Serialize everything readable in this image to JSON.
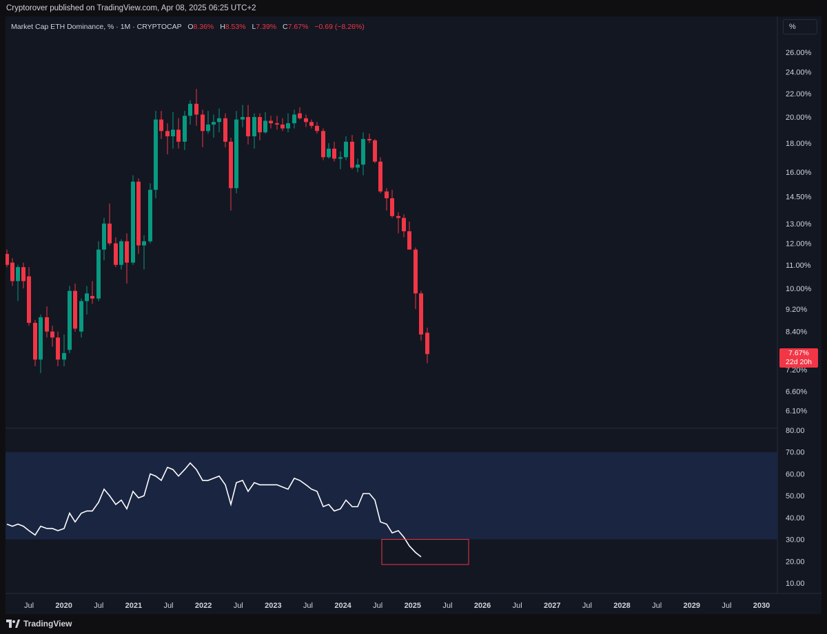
{
  "header": {
    "publisher_text": "Cryptorover published on TradingView.com, Apr 08, 2025 06:25 UTC+2"
  },
  "legend": {
    "symbol": "Market Cap ETH Dominance, % · 1M · CRYPTOCAP",
    "open_label": "O",
    "open": "8.36%",
    "high_label": "H",
    "high": "8.53%",
    "low_label": "L",
    "low": "7.39%",
    "close_label": "C",
    "close": "7.67%",
    "change": "−0.69 (−8.26%)"
  },
  "scale_button": "%",
  "price_badge": {
    "value": "7.67%",
    "countdown": "22d 20h"
  },
  "footer": {
    "brand": "TradingView"
  },
  "colors": {
    "up": "#089981",
    "down": "#f23645",
    "background": "#131722",
    "rsi_band": "#1a2541",
    "rsi_line": "#ffffff",
    "highlight_box": "#f23645"
  },
  "chart_data": [
    {
      "type": "candlestick",
      "title": "Market Cap ETH Dominance, % · 1M · CRYPTOCAP",
      "scale": "log",
      "y_ticks": [
        "26.00%",
        "24.00%",
        "22.00%",
        "20.00%",
        "18.00%",
        "16.00%",
        "14.50%",
        "13.00%",
        "12.00%",
        "11.00%",
        "10.00%",
        "9.20%",
        "8.40%",
        "7.20%",
        "6.60%",
        "6.10%"
      ],
      "ylim": [
        5.8,
        28
      ],
      "candles": [
        {
          "x": 10,
          "o": 11.5,
          "h": 11.7,
          "l": 10.9,
          "c": 11.0
        },
        {
          "x": 18,
          "o": 11.1,
          "h": 11.3,
          "l": 10.1,
          "c": 10.3
        },
        {
          "x": 26,
          "o": 10.3,
          "h": 11.0,
          "l": 9.5,
          "c": 10.9
        },
        {
          "x": 34,
          "o": 10.9,
          "h": 11.1,
          "l": 10.0,
          "c": 10.3
        },
        {
          "x": 42,
          "o": 10.5,
          "h": 10.9,
          "l": 8.6,
          "c": 8.7
        },
        {
          "x": 51,
          "o": 8.7,
          "h": 8.8,
          "l": 7.3,
          "c": 7.5
        },
        {
          "x": 59,
          "o": 7.5,
          "h": 9.0,
          "l": 7.1,
          "c": 8.9
        },
        {
          "x": 68,
          "o": 8.9,
          "h": 9.3,
          "l": 8.2,
          "c": 8.4
        },
        {
          "x": 76,
          "o": 8.4,
          "h": 8.6,
          "l": 7.9,
          "c": 8.2
        },
        {
          "x": 84,
          "o": 8.2,
          "h": 8.4,
          "l": 7.3,
          "c": 7.5
        },
        {
          "x": 93,
          "o": 7.5,
          "h": 8.3,
          "l": 7.3,
          "c": 7.7
        },
        {
          "x": 101,
          "o": 7.8,
          "h": 10.1,
          "l": 7.7,
          "c": 9.9
        },
        {
          "x": 109,
          "o": 9.9,
          "h": 10.2,
          "l": 8.4,
          "c": 8.5
        },
        {
          "x": 118,
          "o": 8.4,
          "h": 9.6,
          "l": 8.2,
          "c": 9.5
        },
        {
          "x": 126,
          "o": 9.5,
          "h": 10.1,
          "l": 9.0,
          "c": 9.8
        },
        {
          "x": 134,
          "o": 9.7,
          "h": 10.3,
          "l": 9.4,
          "c": 9.6
        },
        {
          "x": 143,
          "o": 9.6,
          "h": 12.1,
          "l": 9.5,
          "c": 11.7
        },
        {
          "x": 151,
          "o": 11.7,
          "h": 13.3,
          "l": 11.2,
          "c": 13.0
        },
        {
          "x": 159,
          "o": 13.0,
          "h": 14.1,
          "l": 11.9,
          "c": 12.0
        },
        {
          "x": 168,
          "o": 12.0,
          "h": 12.3,
          "l": 10.9,
          "c": 11.0
        },
        {
          "x": 176,
          "o": 11.0,
          "h": 12.2,
          "l": 10.8,
          "c": 12.1
        },
        {
          "x": 184,
          "o": 12.1,
          "h": 12.5,
          "l": 10.2,
          "c": 11.1
        },
        {
          "x": 193,
          "o": 11.1,
          "h": 15.8,
          "l": 11.0,
          "c": 15.4
        },
        {
          "x": 201,
          "o": 15.4,
          "h": 15.6,
          "l": 11.5,
          "c": 11.9
        },
        {
          "x": 209,
          "o": 11.9,
          "h": 12.4,
          "l": 10.8,
          "c": 12.1
        },
        {
          "x": 218,
          "o": 12.1,
          "h": 15.3,
          "l": 12.0,
          "c": 14.9
        },
        {
          "x": 226,
          "o": 14.9,
          "h": 20.5,
          "l": 14.4,
          "c": 19.8
        },
        {
          "x": 234,
          "o": 19.8,
          "h": 20.5,
          "l": 18.3,
          "c": 18.9
        },
        {
          "x": 243,
          "o": 18.9,
          "h": 19.5,
          "l": 17.2,
          "c": 18.5
        },
        {
          "x": 251,
          "o": 18.5,
          "h": 20.4,
          "l": 17.6,
          "c": 19.0
        },
        {
          "x": 259,
          "o": 19.0,
          "h": 19.9,
          "l": 17.6,
          "c": 18.1
        },
        {
          "x": 268,
          "o": 18.1,
          "h": 20.5,
          "l": 17.5,
          "c": 20.1
        },
        {
          "x": 276,
          "o": 20.1,
          "h": 21.4,
          "l": 19.4,
          "c": 21.1
        },
        {
          "x": 285,
          "o": 21.1,
          "h": 22.4,
          "l": 19.3,
          "c": 20.2
        },
        {
          "x": 294,
          "o": 20.2,
          "h": 20.6,
          "l": 17.7,
          "c": 18.9
        },
        {
          "x": 302,
          "o": 18.9,
          "h": 20.5,
          "l": 18.7,
          "c": 19.4
        },
        {
          "x": 310,
          "o": 19.4,
          "h": 20.2,
          "l": 18.4,
          "c": 19.6
        },
        {
          "x": 318,
          "o": 19.6,
          "h": 20.7,
          "l": 18.8,
          "c": 19.9
        },
        {
          "x": 327,
          "o": 19.9,
          "h": 20.3,
          "l": 17.7,
          "c": 18.1
        },
        {
          "x": 335,
          "o": 18.1,
          "h": 18.4,
          "l": 13.7,
          "c": 15.0
        },
        {
          "x": 343,
          "o": 15.0,
          "h": 20.5,
          "l": 14.7,
          "c": 19.8
        },
        {
          "x": 352,
          "o": 19.8,
          "h": 21.0,
          "l": 19.2,
          "c": 20.0
        },
        {
          "x": 360,
          "o": 20.0,
          "h": 21.0,
          "l": 17.9,
          "c": 18.5
        },
        {
          "x": 369,
          "o": 18.5,
          "h": 20.3,
          "l": 17.6,
          "c": 20.0
        },
        {
          "x": 377,
          "o": 20.0,
          "h": 20.3,
          "l": 18.2,
          "c": 18.8
        },
        {
          "x": 385,
          "o": 18.8,
          "h": 20.4,
          "l": 18.7,
          "c": 19.7
        },
        {
          "x": 393,
          "o": 19.7,
          "h": 20.1,
          "l": 19.1,
          "c": 19.5
        },
        {
          "x": 402,
          "o": 19.5,
          "h": 20.1,
          "l": 19.0,
          "c": 19.4
        },
        {
          "x": 410,
          "o": 19.4,
          "h": 19.9,
          "l": 18.9,
          "c": 19.1
        },
        {
          "x": 418,
          "o": 19.1,
          "h": 20.3,
          "l": 18.8,
          "c": 19.5
        },
        {
          "x": 427,
          "o": 19.5,
          "h": 20.6,
          "l": 19.1,
          "c": 20.2
        },
        {
          "x": 435,
          "o": 20.3,
          "h": 20.8,
          "l": 19.8,
          "c": 19.9
        },
        {
          "x": 444,
          "o": 19.9,
          "h": 20.2,
          "l": 19.2,
          "c": 19.6
        },
        {
          "x": 452,
          "o": 19.6,
          "h": 19.8,
          "l": 19.1,
          "c": 19.3
        },
        {
          "x": 460,
          "o": 19.3,
          "h": 19.6,
          "l": 18.7,
          "c": 18.9
        },
        {
          "x": 469,
          "o": 18.9,
          "h": 19.1,
          "l": 16.8,
          "c": 17.0
        },
        {
          "x": 477,
          "o": 17.0,
          "h": 18.0,
          "l": 16.9,
          "c": 17.6
        },
        {
          "x": 485,
          "o": 17.6,
          "h": 18.1,
          "l": 16.7,
          "c": 16.9
        },
        {
          "x": 494,
          "o": 16.9,
          "h": 17.4,
          "l": 16.2,
          "c": 17.0
        },
        {
          "x": 502,
          "o": 17.0,
          "h": 18.5,
          "l": 16.8,
          "c": 18.1
        },
        {
          "x": 511,
          "o": 18.1,
          "h": 18.6,
          "l": 16.2,
          "c": 16.3
        },
        {
          "x": 519,
          "o": 16.3,
          "h": 16.9,
          "l": 16.0,
          "c": 16.5
        },
        {
          "x": 527,
          "o": 16.5,
          "h": 18.8,
          "l": 15.8,
          "c": 18.3
        },
        {
          "x": 536,
          "o": 18.3,
          "h": 18.7,
          "l": 18.0,
          "c": 18.2
        },
        {
          "x": 544,
          "o": 18.2,
          "h": 18.3,
          "l": 16.6,
          "c": 16.7
        },
        {
          "x": 552,
          "o": 16.7,
          "h": 17.0,
          "l": 14.7,
          "c": 14.8
        },
        {
          "x": 561,
          "o": 14.8,
          "h": 15.0,
          "l": 13.7,
          "c": 14.4
        },
        {
          "x": 569,
          "o": 14.4,
          "h": 14.9,
          "l": 13.3,
          "c": 13.4
        },
        {
          "x": 578,
          "o": 13.4,
          "h": 13.6,
          "l": 12.5,
          "c": 13.3
        },
        {
          "x": 586,
          "o": 13.3,
          "h": 13.5,
          "l": 12.3,
          "c": 12.6
        },
        {
          "x": 594,
          "o": 12.6,
          "h": 13.1,
          "l": 11.7,
          "c": 11.7
        },
        {
          "x": 603,
          "o": 11.7,
          "h": 11.8,
          "l": 9.2,
          "c": 9.8
        },
        {
          "x": 611,
          "o": 9.8,
          "h": 9.9,
          "l": 8.1,
          "c": 8.3
        },
        {
          "x": 620,
          "o": 8.36,
          "h": 8.53,
          "l": 7.39,
          "c": 7.67
        }
      ]
    },
    {
      "type": "line",
      "ylim": [
        0,
        85
      ],
      "y_ticks": [
        "80.00",
        "70.00",
        "60.00",
        "50.00",
        "40.00",
        "30.00",
        "20.00",
        "10.00"
      ],
      "band": [
        30,
        70
      ],
      "x_ticks": [
        "Jul",
        "2020",
        "Jul",
        "2021",
        "Jul",
        "2022",
        "Jul",
        "2023",
        "Jul",
        "2024",
        "Jul",
        "2025",
        "Jul",
        "2026",
        "Jul",
        "2027",
        "Jul",
        "2028",
        "Jul",
        "2029",
        "Jul",
        "2030"
      ],
      "values": [
        37,
        36,
        37,
        36,
        34,
        32,
        36,
        35,
        35,
        34,
        35,
        42,
        38,
        42,
        43,
        43,
        47,
        53,
        50,
        46,
        48,
        44,
        52,
        49,
        50,
        60,
        59,
        57,
        63,
        62,
        59,
        62,
        65,
        62,
        57,
        57,
        58,
        59,
        55,
        46,
        56,
        57,
        52,
        56,
        55,
        55,
        55,
        55,
        54,
        53,
        58,
        57,
        55,
        53,
        52,
        45,
        46,
        43,
        44,
        48,
        45,
        45,
        51,
        51,
        48,
        38,
        37,
        33,
        34,
        31,
        27,
        24,
        22
      ]
    }
  ]
}
